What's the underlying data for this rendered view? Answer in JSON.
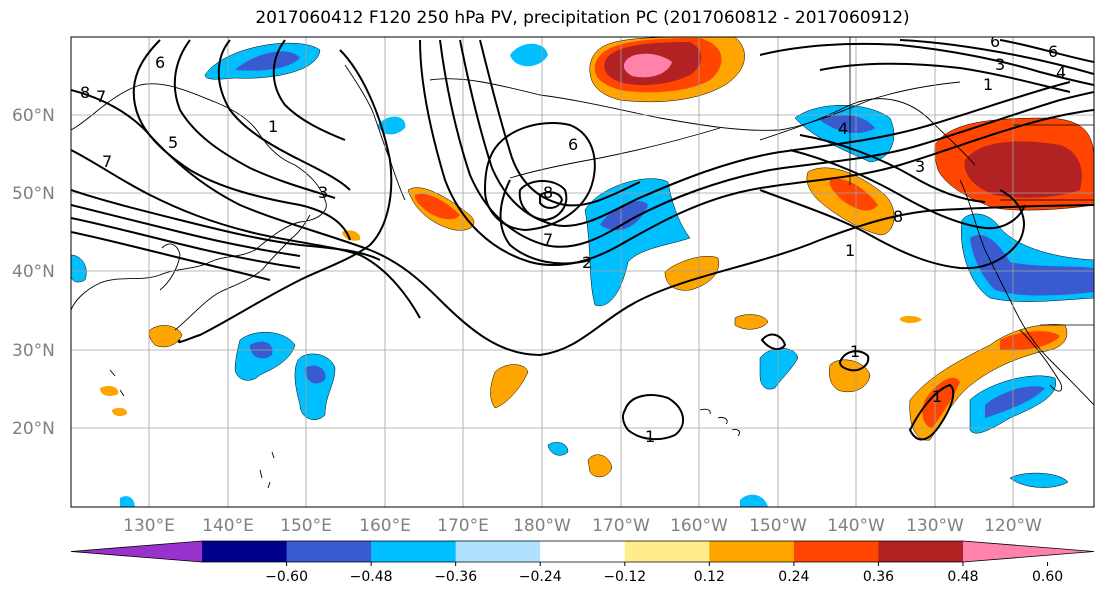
{
  "title": "2017060412 F120 250 hPa PV, precipitation PC (2017060812 - 2017060912)",
  "map": {
    "lat_labels": [
      "60°N",
      "50°N",
      "40°N",
      "30°N",
      "20°N"
    ],
    "lon_labels": [
      "130°E",
      "140°E",
      "150°E",
      "160°E",
      "170°E",
      "180°W",
      "170°W",
      "160°W",
      "150°W",
      "140°W",
      "130°W",
      "120°W"
    ],
    "contour_labels": [
      "8",
      "7",
      "6",
      "1",
      "5",
      "7",
      "3",
      "6",
      "8",
      "7",
      "2",
      "4",
      "8",
      "1",
      "4",
      "3",
      "6",
      "6",
      "3",
      "1",
      "1",
      "1",
      "1"
    ]
  },
  "colorbar": {
    "tick_labels": [
      "−0.60",
      "−0.48",
      "−0.36",
      "−0.24",
      "−0.12",
      "0.12",
      "0.24",
      "0.36",
      "0.48",
      "0.60"
    ],
    "colors": [
      "#9932cc",
      "#00008b",
      "#3a5bcf",
      "#00bfff",
      "#b0e2ff",
      "#ffffff",
      "#ffec8b",
      "#ffa500",
      "#ff4500",
      "#b22222",
      "#ff82ab"
    ]
  }
}
